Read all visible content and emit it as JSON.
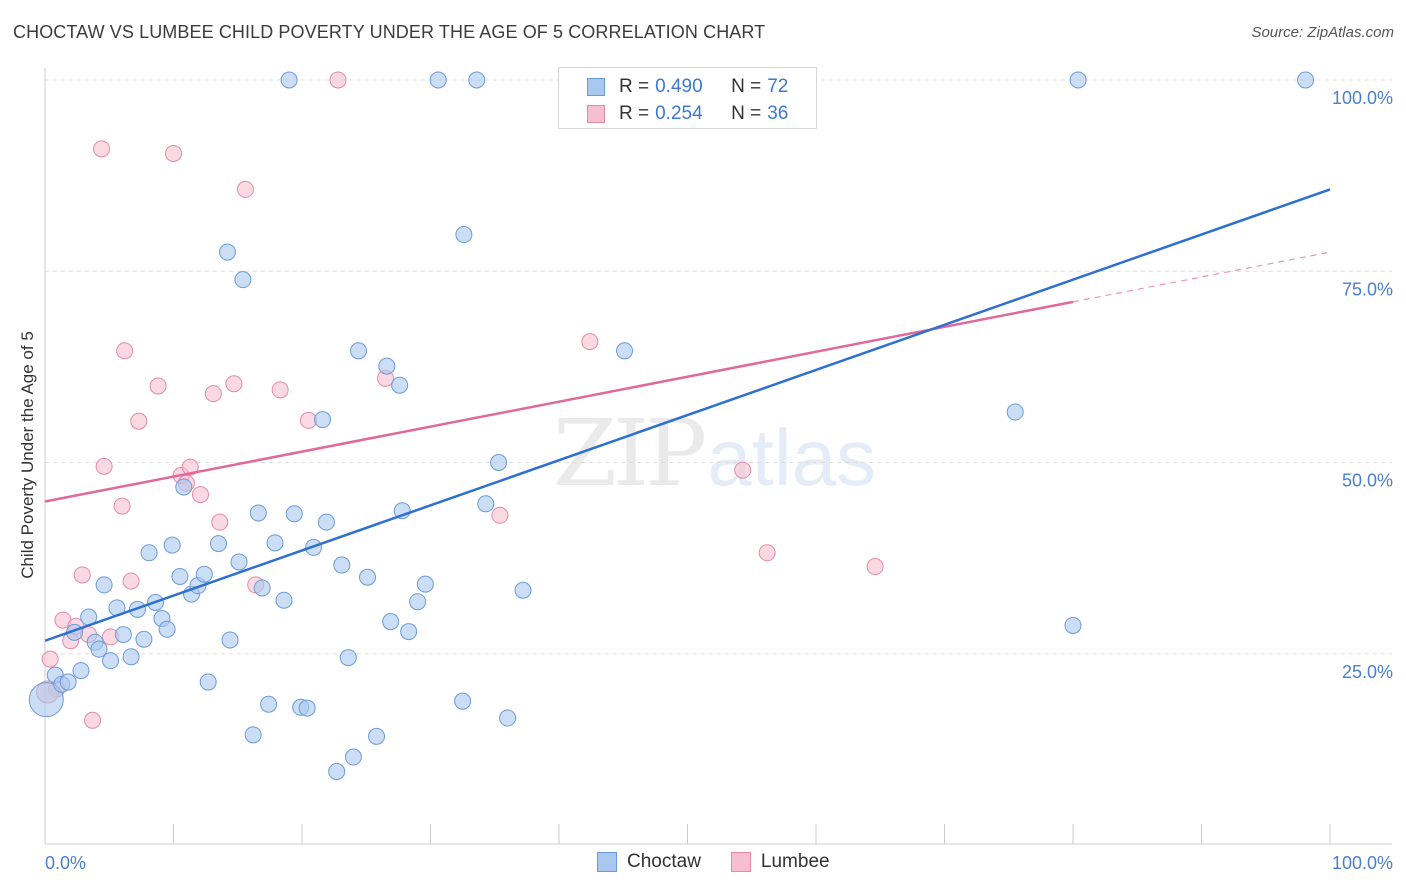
{
  "header": {
    "title": "CHOCTAW VS LUMBEE CHILD POVERTY UNDER THE AGE OF 5 CORRELATION CHART",
    "source": "Source: ZipAtlas.com"
  },
  "watermark": {
    "part1": "ZIP",
    "part2": "atlas"
  },
  "legend": {
    "rows": [
      {
        "r_label": "R =",
        "r_value": "0.490",
        "n_label": "N =",
        "n_value": "72"
      },
      {
        "r_label": "R =",
        "r_value": "0.254",
        "n_label": "N =",
        "n_value": "36"
      }
    ],
    "bottom": [
      "Choctaw",
      "Lumbee"
    ]
  },
  "colors": {
    "choctaw_fill": "#a9c8ef",
    "choctaw_stroke": "#6b9bd6",
    "choctaw_line": "#2f6fd0",
    "lumbee_fill": "#f6bfd0",
    "lumbee_stroke": "#e48aa8",
    "lumbee_line": "#e0689a",
    "tick_label": "#4a7fd0",
    "grid": "#dddddd"
  },
  "chart_data": {
    "type": "scatter",
    "title": "CHOCTAW VS LUMBEE CHILD POVERTY UNDER THE AGE OF 5 CORRELATION CHART",
    "xlabel": "",
    "ylabel": "Child Poverty Under the Age of 5",
    "xlim": [
      0,
      100
    ],
    "ylim": [
      0,
      100
    ],
    "x_tick_labels": [
      "0.0%",
      "100.0%"
    ],
    "y_ticks": [
      25,
      50,
      75,
      100
    ],
    "y_tick_labels": [
      "25.0%",
      "50.0%",
      "75.0%",
      "100.0%"
    ],
    "grid": true,
    "legend_position": "top-center",
    "series": [
      {
        "name": "Choctaw",
        "r": 0.49,
        "n": 72,
        "trend": {
          "x": [
            0,
            100
          ],
          "y": [
            26.7,
            85.7
          ]
        },
        "points": [
          [
            0.1,
            19.0
          ],
          [
            0.8,
            22.2
          ],
          [
            1.3,
            21.0
          ],
          [
            1.8,
            21.3
          ],
          [
            2.3,
            27.8
          ],
          [
            2.8,
            22.8
          ],
          [
            3.4,
            29.8
          ],
          [
            3.9,
            26.5
          ],
          [
            4.2,
            25.6
          ],
          [
            4.6,
            34.0
          ],
          [
            5.1,
            24.1
          ],
          [
            5.6,
            31.0
          ],
          [
            6.1,
            27.5
          ],
          [
            6.7,
            24.6
          ],
          [
            7.2,
            30.8
          ],
          [
            7.7,
            26.9
          ],
          [
            8.1,
            38.2
          ],
          [
            8.6,
            31.7
          ],
          [
            9.1,
            29.6
          ],
          [
            9.5,
            28.2
          ],
          [
            9.9,
            39.2
          ],
          [
            10.5,
            35.1
          ],
          [
            10.8,
            46.8
          ],
          [
            11.4,
            32.8
          ],
          [
            11.9,
            33.9
          ],
          [
            12.4,
            35.4
          ],
          [
            12.7,
            21.3
          ],
          [
            13.5,
            39.4
          ],
          [
            14.2,
            77.5
          ],
          [
            14.4,
            26.8
          ],
          [
            15.1,
            37.0
          ],
          [
            15.4,
            73.9
          ],
          [
            16.2,
            14.4
          ],
          [
            16.6,
            43.4
          ],
          [
            16.9,
            33.6
          ],
          [
            17.4,
            18.4
          ],
          [
            17.9,
            39.5
          ],
          [
            18.6,
            32.0
          ],
          [
            19.0,
            100.0
          ],
          [
            19.4,
            43.3
          ],
          [
            19.9,
            18.0
          ],
          [
            20.4,
            17.9
          ],
          [
            20.9,
            38.9
          ],
          [
            21.6,
            55.6
          ],
          [
            21.9,
            42.2
          ],
          [
            22.7,
            9.6
          ],
          [
            23.1,
            36.6
          ],
          [
            23.6,
            24.5
          ],
          [
            24.0,
            11.5
          ],
          [
            24.4,
            64.6
          ],
          [
            25.1,
            35.0
          ],
          [
            25.8,
            14.2
          ],
          [
            26.6,
            62.6
          ],
          [
            26.9,
            29.2
          ],
          [
            27.6,
            60.1
          ],
          [
            27.8,
            43.7
          ],
          [
            28.3,
            27.9
          ],
          [
            29.0,
            31.8
          ],
          [
            29.6,
            34.1
          ],
          [
            30.6,
            100.0
          ],
          [
            32.6,
            79.8
          ],
          [
            33.6,
            100.0
          ],
          [
            32.5,
            18.8
          ],
          [
            34.3,
            44.6
          ],
          [
            35.3,
            50.0
          ],
          [
            36.0,
            16.6
          ],
          [
            37.2,
            33.3
          ],
          [
            45.1,
            64.6
          ],
          [
            75.5,
            56.6
          ],
          [
            80.0,
            28.7
          ],
          [
            80.4,
            100.0
          ],
          [
            98.1,
            100.0
          ]
        ]
      },
      {
        "name": "Lumbee",
        "r": 0.254,
        "n": 36,
        "trend": {
          "x": [
            0,
            80
          ],
          "y": [
            44.9,
            71.0
          ]
        },
        "trend_extension": {
          "x": [
            80,
            100
          ],
          "y": [
            71.0,
            77.5
          ]
        },
        "points": [
          [
            0.4,
            24.3
          ],
          [
            0.9,
            20.4
          ],
          [
            1.4,
            29.4
          ],
          [
            2.0,
            26.7
          ],
          [
            2.4,
            28.6
          ],
          [
            2.9,
            35.3
          ],
          [
            3.4,
            27.5
          ],
          [
            3.7,
            16.3
          ],
          [
            4.4,
            91.0
          ],
          [
            4.6,
            49.5
          ],
          [
            5.1,
            27.2
          ],
          [
            6.0,
            44.3
          ],
          [
            6.2,
            64.6
          ],
          [
            6.7,
            34.5
          ],
          [
            7.3,
            55.4
          ],
          [
            8.8,
            60.0
          ],
          [
            10.0,
            90.4
          ],
          [
            10.6,
            48.3
          ],
          [
            11.0,
            47.3
          ],
          [
            11.3,
            49.4
          ],
          [
            12.1,
            45.8
          ],
          [
            13.1,
            59.0
          ],
          [
            13.6,
            42.2
          ],
          [
            14.7,
            60.3
          ],
          [
            15.6,
            85.7
          ],
          [
            16.4,
            34.0
          ],
          [
            18.3,
            59.5
          ],
          [
            20.5,
            55.5
          ],
          [
            22.8,
            100.0
          ],
          [
            26.5,
            61.0
          ],
          [
            35.4,
            43.1
          ],
          [
            42.4,
            65.8
          ],
          [
            54.3,
            49.0
          ],
          [
            56.2,
            38.2
          ],
          [
            64.6,
            36.4
          ],
          [
            0.2,
            20.0
          ]
        ]
      }
    ]
  }
}
